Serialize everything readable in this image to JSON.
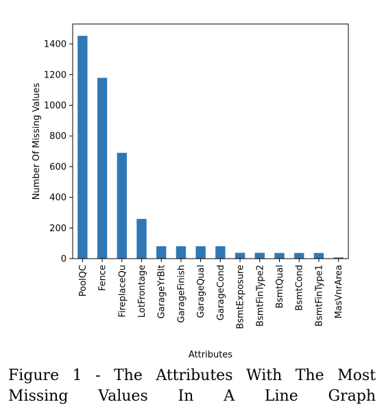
{
  "caption": "Figure 1 - The Attributes With The Most Missing Values In A Line Graph",
  "colors": {
    "bar": "#2f78b5",
    "axis": "#000000"
  },
  "chart_data": {
    "type": "bar",
    "title": "",
    "xlabel": "Attributes",
    "ylabel": "Number Of Missing Values",
    "categories": [
      "PoolQC",
      "Fence",
      "FireplaceQu",
      "LotFrontage",
      "GarageYrBlt",
      "GarageFinish",
      "GarageQual",
      "GarageCond",
      "BsmtExposure",
      "BsmtFinType2",
      "BsmtQual",
      "BsmtCond",
      "BsmtFinType1",
      "MasVnrArea"
    ],
    "values": [
      1453,
      1179,
      690,
      259,
      81,
      81,
      81,
      81,
      38,
      38,
      37,
      37,
      37,
      8
    ],
    "ylim": [
      0,
      1530
    ],
    "yticks": [
      0,
      200,
      400,
      600,
      800,
      1000,
      1200,
      1400
    ],
    "grid": false,
    "legend": "none"
  }
}
